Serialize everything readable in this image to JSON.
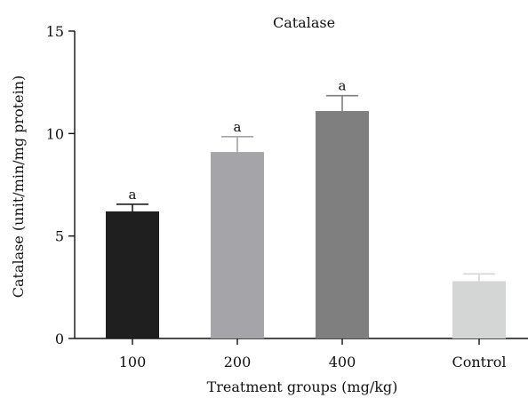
{
  "chart_data": {
    "type": "bar",
    "title": "Catalase",
    "xlabel": "Treatment groups (mg/kg)",
    "ylabel": "Catalase (unit/min/mg protein)",
    "ylim": [
      0,
      15
    ],
    "yticks": [
      0,
      5,
      10,
      15
    ],
    "categories": [
      "100",
      "200",
      "400",
      "Control"
    ],
    "values": [
      6.2,
      9.1,
      11.1,
      2.8
    ],
    "errors": [
      0.35,
      0.75,
      0.75,
      0.35
    ],
    "annotations": [
      "a",
      "a",
      "a",
      ""
    ],
    "colors": [
      "#1f1f1f",
      "#a5a4a9",
      "#7e7f7e",
      "#d4d6d5"
    ],
    "grid": false
  }
}
